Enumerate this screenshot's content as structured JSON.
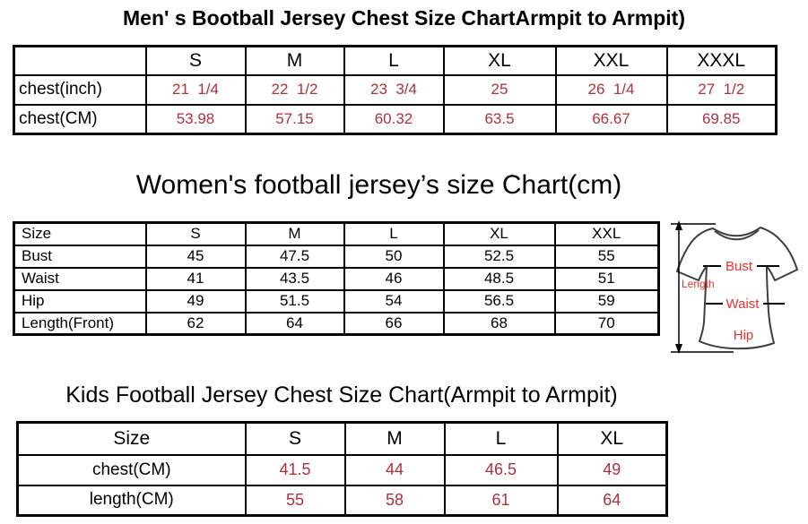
{
  "colors": {
    "value_red": "#b0303e",
    "diagram_label_red": "#e8322c",
    "table_border": "#000000",
    "shirt_outline": "#3f3f3f",
    "background": "#ffffff"
  },
  "mens_chart": {
    "title": "Men' s Bootball Jersey Chest Size ChartArmpit to Armpit)",
    "columns": [
      "",
      "S",
      "M",
      "L",
      "XL",
      "XXL",
      "XXXL"
    ],
    "rows": [
      {
        "label": "chest(inch)",
        "values": [
          "21  1/4",
          "22  1/2",
          "23  3/4",
          "25",
          "26  1/4",
          "27  1/2"
        ]
      },
      {
        "label": "chest(CM)",
        "values": [
          "53.98",
          "57.15",
          "60.32",
          "63.5",
          "66.67",
          "69.85"
        ]
      }
    ]
  },
  "womens_chart": {
    "title": "Women's football jersey’s size Chart(cm)",
    "columns": [
      "Size",
      "S",
      "M",
      "L",
      "XL",
      "XXL"
    ],
    "rows": [
      {
        "label": "Bust",
        "values": [
          "45",
          "47.5",
          "50",
          "52.5",
          "55"
        ]
      },
      {
        "label": "Waist",
        "values": [
          "41",
          "43.5",
          "46",
          "48.5",
          "51"
        ]
      },
      {
        "label": "Hip",
        "values": [
          "49",
          "51.5",
          "54",
          "56.5",
          "59"
        ]
      },
      {
        "label": "Length(Front)",
        "values": [
          "62",
          "64",
          "66",
          "68",
          "70"
        ]
      }
    ],
    "diagram_labels": {
      "length": "Length",
      "bust": "Bust",
      "waist": "Waist",
      "hip": "Hip"
    }
  },
  "kids_chart": {
    "title": "Kids Football Jersey Chest Size Chart(Armpit to Armpit)",
    "columns": [
      "Size",
      "S",
      "M",
      "L",
      "XL"
    ],
    "rows": [
      {
        "label": "chest(CM)",
        "values": [
          "41.5",
          "44",
          "46.5",
          "49"
        ]
      },
      {
        "label": "length(CM)",
        "values": [
          "55",
          "58",
          "61",
          "64"
        ]
      }
    ]
  },
  "chart_data": [
    {
      "type": "table",
      "title": "Men' s Bootball Jersey Chest Size ChartArmpit to Armpit)",
      "columns": [
        "",
        "S",
        "M",
        "L",
        "XL",
        "XXL",
        "XXXL"
      ],
      "rows": [
        [
          "chest(inch)",
          "21 1/4",
          "22 1/2",
          "23 3/4",
          "25",
          "26 1/4",
          "27 1/2"
        ],
        [
          "chest(CM)",
          "53.98",
          "57.15",
          "60.32",
          "63.5",
          "66.67",
          "69.85"
        ]
      ]
    },
    {
      "type": "table",
      "title": "Women's football jersey’s size Chart(cm)",
      "columns": [
        "Size",
        "S",
        "M",
        "L",
        "XL",
        "XXL"
      ],
      "rows": [
        [
          "Bust",
          "45",
          "47.5",
          "50",
          "52.5",
          "55"
        ],
        [
          "Waist",
          "41",
          "43.5",
          "46",
          "48.5",
          "51"
        ],
        [
          "Hip",
          "49",
          "51.5",
          "54",
          "56.5",
          "59"
        ],
        [
          "Length(Front)",
          "62",
          "64",
          "66",
          "68",
          "70"
        ]
      ]
    },
    {
      "type": "table",
      "title": "Kids Football Jersey Chest Size Chart(Armpit to Armpit)",
      "columns": [
        "Size",
        "S",
        "M",
        "L",
        "XL"
      ],
      "rows": [
        [
          "chest(CM)",
          "41.5",
          "44",
          "46.5",
          "49"
        ],
        [
          "length(CM)",
          "55",
          "58",
          "61",
          "64"
        ]
      ]
    }
  ]
}
